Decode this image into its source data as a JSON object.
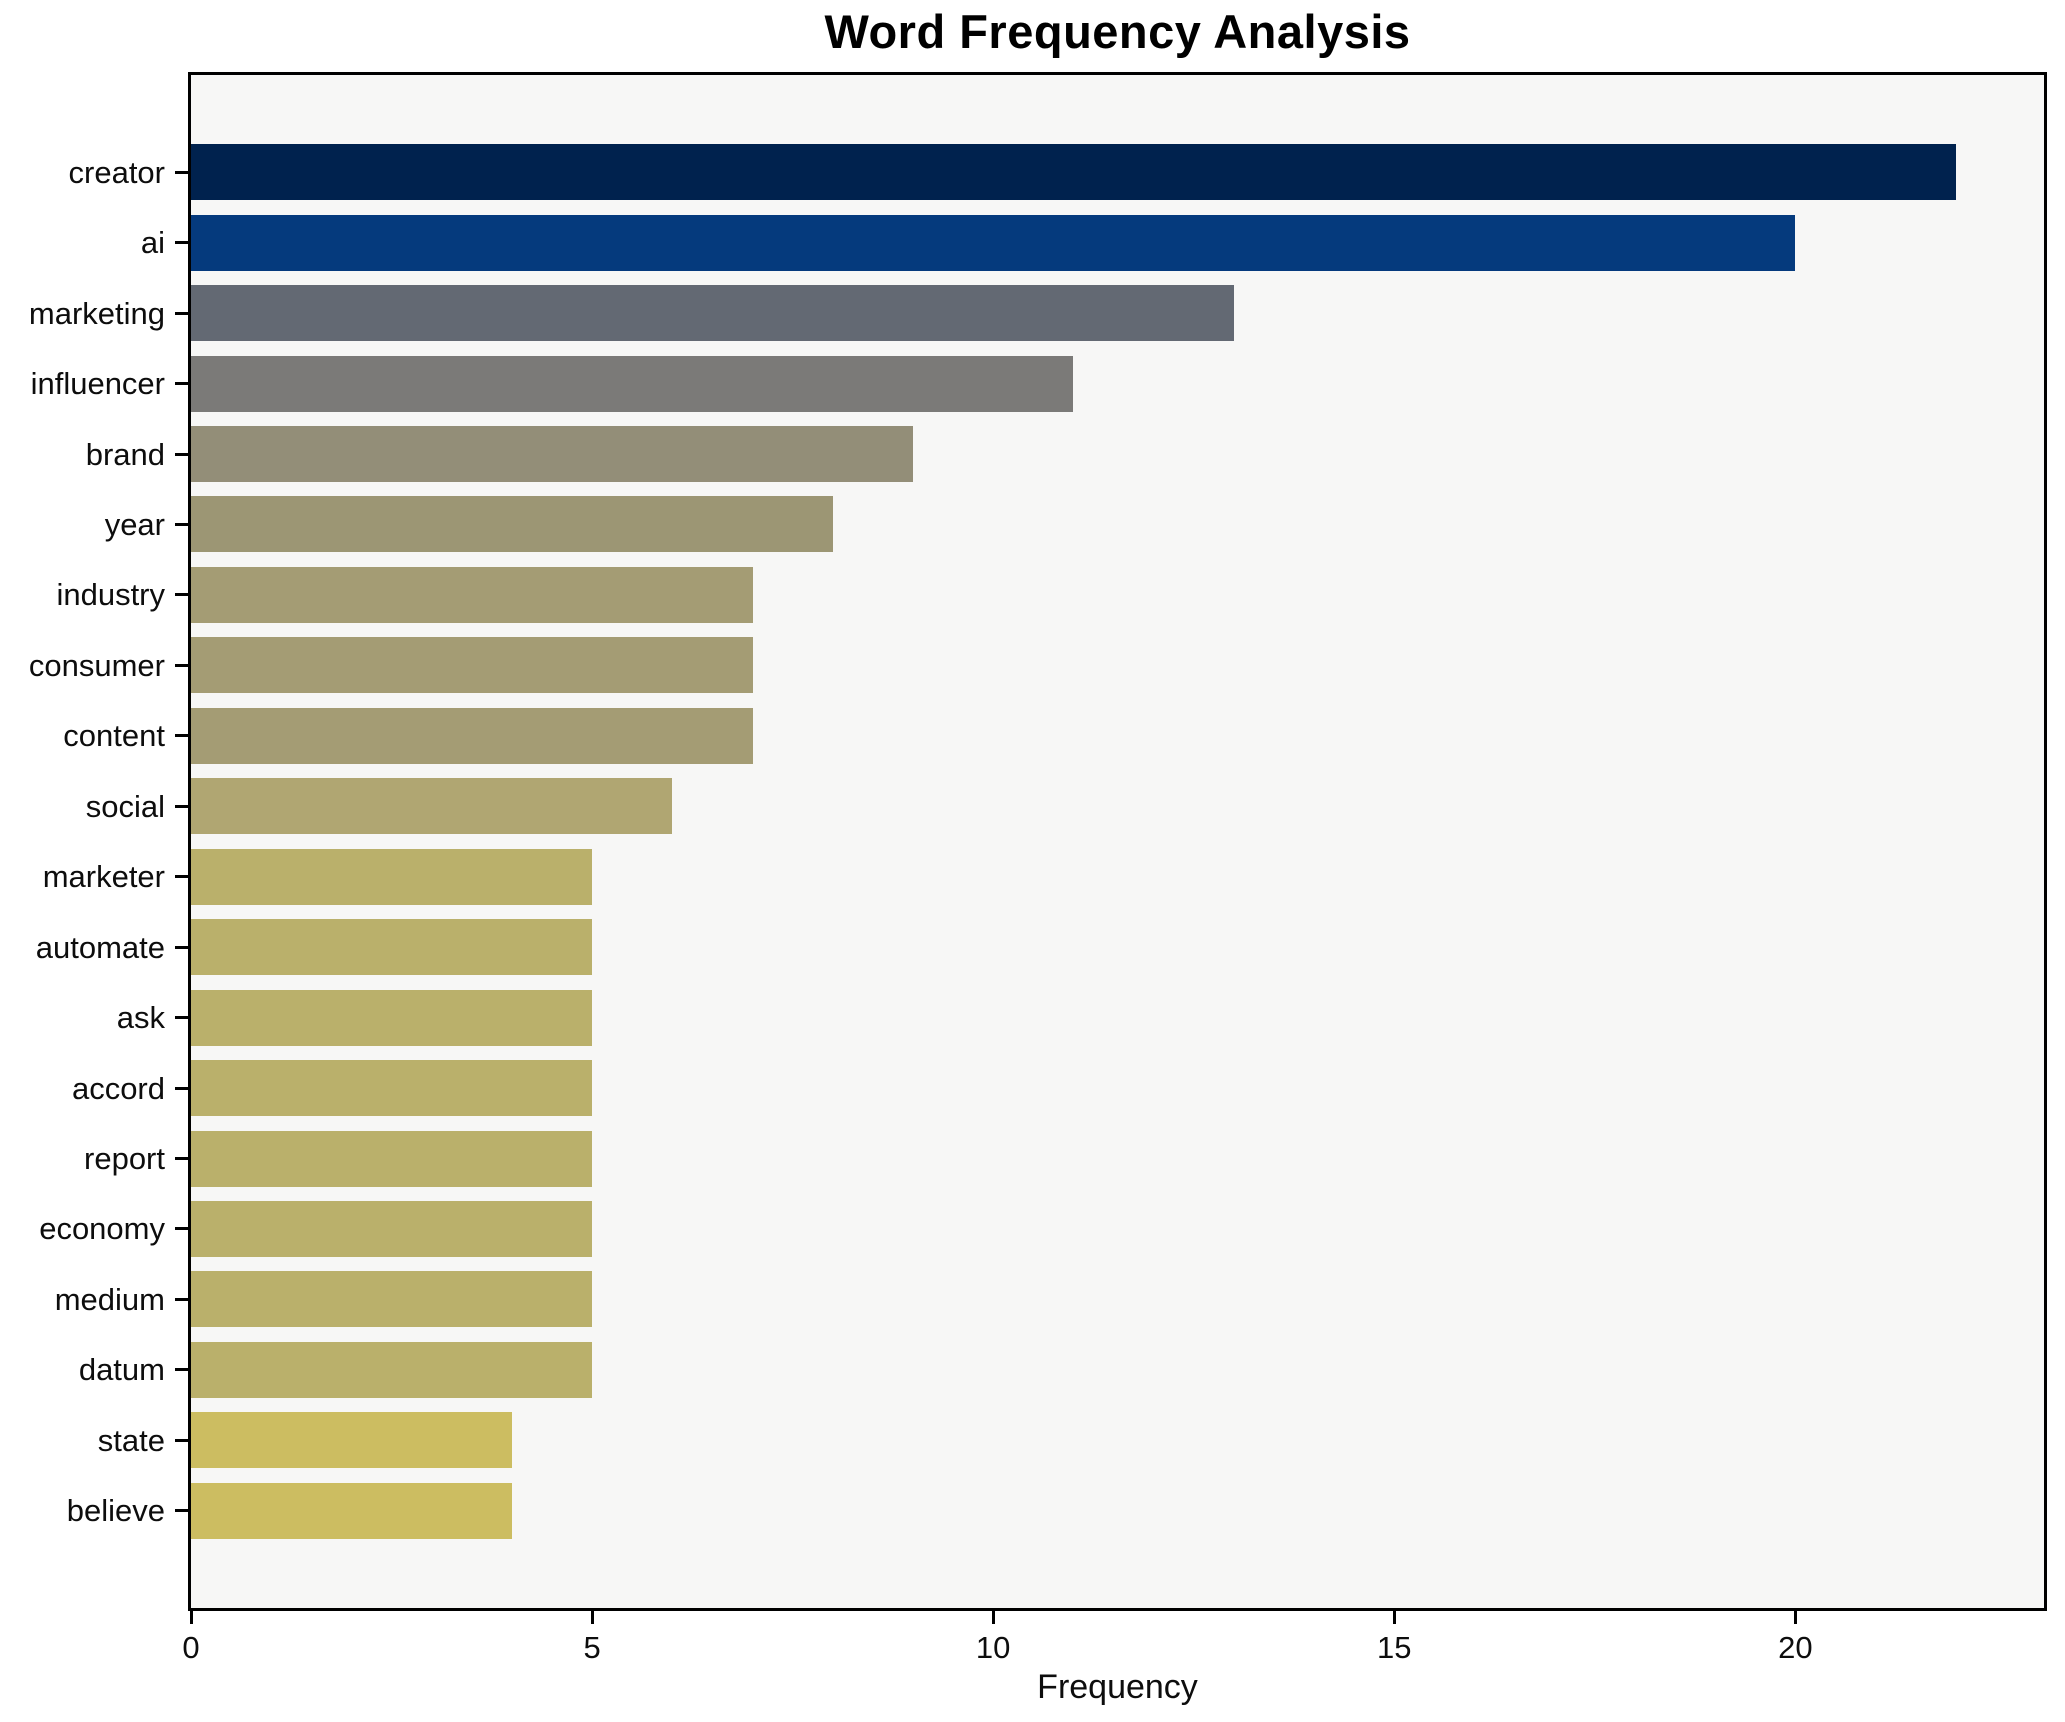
{
  "chart_data": {
    "type": "bar",
    "orientation": "horizontal",
    "title": "Word Frequency Analysis",
    "xlabel": "Frequency",
    "ylabel": "",
    "categories": [
      "creator",
      "ai",
      "marketing",
      "influencer",
      "brand",
      "year",
      "industry",
      "consumer",
      "content",
      "social",
      "marketer",
      "automate",
      "ask",
      "accord",
      "report",
      "economy",
      "medium",
      "datum",
      "state",
      "believe"
    ],
    "values": [
      22,
      20,
      13,
      11,
      9,
      8,
      7,
      7,
      7,
      6,
      5,
      5,
      5,
      5,
      5,
      5,
      5,
      5,
      4,
      4
    ],
    "bar_colors": [
      "#00224e",
      "#053a7d",
      "#636973",
      "#7b7a78",
      "#938e78",
      "#9c9674",
      "#a49c74",
      "#a49c74",
      "#a49c74",
      "#b0a672",
      "#bab06b",
      "#bab06b",
      "#bab06b",
      "#bab06b",
      "#bab06b",
      "#bab06b",
      "#bab06b",
      "#bab06b",
      "#ccbd61",
      "#ccbd61"
    ],
    "xticks": [
      0,
      5,
      10,
      15,
      20
    ],
    "xlim": [
      0,
      23.1
    ],
    "grid": false,
    "legend": false,
    "plot_background": "#f7f7f6",
    "spine_color": "#000000"
  }
}
